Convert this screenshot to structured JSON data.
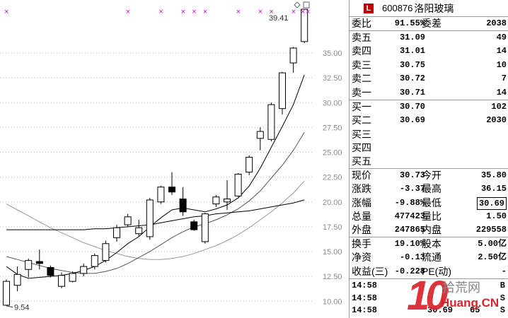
{
  "chart": {
    "high_label": "39.41",
    "low_label": "9.54",
    "axis_ticks": [
      "35.00",
      "32.50",
      "30.00",
      "27.50",
      "25.00",
      "22.50",
      "20.00",
      "17.50",
      "15.00",
      "12.50",
      "10.00"
    ],
    "axis_values": [
      35,
      32.5,
      30,
      27.5,
      25,
      22.5,
      20,
      17.5,
      15,
      12.5,
      10
    ],
    "marker_glyph": "×",
    "marker_count": 10,
    "candles": [
      {
        "o": 9.6,
        "c": 12.0,
        "h": 12.2,
        "l": 9.54
      },
      {
        "o": 11.6,
        "c": 12.7,
        "h": 13.5,
        "l": 11.0
      },
      {
        "o": 13.2,
        "c": 14.1,
        "h": 14.3,
        "l": 12.4
      },
      {
        "o": 14.0,
        "c": 13.8,
        "h": 15.2,
        "l": 13.2
      },
      {
        "o": 13.4,
        "c": 12.6,
        "h": 13.6,
        "l": 12.4
      },
      {
        "o": 11.5,
        "c": 12.6,
        "h": 12.9,
        "l": 11.3
      },
      {
        "o": 12.0,
        "c": 12.8,
        "h": 13.0,
        "l": 11.9
      },
      {
        "o": 12.8,
        "c": 13.5,
        "h": 13.8,
        "l": 12.5
      },
      {
        "o": 13.5,
        "c": 14.6,
        "h": 14.8,
        "l": 13.2
      },
      {
        "o": 14.1,
        "c": 15.8,
        "h": 16.1,
        "l": 13.9
      },
      {
        "o": 16.4,
        "c": 17.4,
        "h": 17.7,
        "l": 16.0
      },
      {
        "o": 17.7,
        "c": 18.5,
        "h": 18.8,
        "l": 17.5
      },
      {
        "o": 16.8,
        "c": 17.4,
        "h": 18.2,
        "l": 16.5
      },
      {
        "o": 16.5,
        "c": 20.2,
        "h": 20.4,
        "l": 16.2
      },
      {
        "o": 20.0,
        "c": 21.5,
        "h": 21.6,
        "l": 19.8
      },
      {
        "o": 21.5,
        "c": 21.0,
        "h": 23.0,
        "l": 20.7
      },
      {
        "o": 20.3,
        "c": 19.0,
        "h": 21.5,
        "l": 18.6
      },
      {
        "o": 18.0,
        "c": 17.2,
        "h": 18.2,
        "l": 17.1
      },
      {
        "o": 16.0,
        "c": 18.8,
        "h": 18.9,
        "l": 15.8
      },
      {
        "o": 19.8,
        "c": 20.5,
        "h": 20.7,
        "l": 19.5
      },
      {
        "o": 20.0,
        "c": 20.3,
        "h": 22.2,
        "l": 19.2
      },
      {
        "o": 20.6,
        "c": 22.8,
        "h": 22.9,
        "l": 20.5
      },
      {
        "o": 23.0,
        "c": 24.5,
        "h": 24.7,
        "l": 22.7
      },
      {
        "o": 26.4,
        "c": 27.1,
        "h": 27.5,
        "l": 25.2
      },
      {
        "o": 26.3,
        "c": 29.8,
        "h": 30.0,
        "l": 26.1
      },
      {
        "o": 29.4,
        "c": 33.0,
        "h": 33.1,
        "l": 28.8
      },
      {
        "o": 34.0,
        "c": 35.5,
        "h": 35.6,
        "l": 33.0
      },
      {
        "o": 36.15,
        "c": 39.41,
        "h": 39.41,
        "l": 36.0
      }
    ],
    "ma_fast": [
      13.5,
      12.7,
      12.3,
      12.4,
      12.5,
      12.6,
      12.8,
      13.1,
      13.5,
      14.1,
      14.9,
      15.8,
      16.5,
      17.5,
      18.4,
      19.2,
      19.4,
      19.2,
      19.0,
      19.3,
      19.7,
      20.4,
      21.6,
      23.4,
      25.5,
      27.6,
      29.8,
      32.8
    ],
    "ma_mid": [
      14.5,
      14.2,
      13.9,
      13.6,
      13.3,
      13.1,
      12.9,
      12.8,
      12.8,
      13.0,
      13.3,
      13.8,
      14.4,
      15.0,
      15.7,
      16.4,
      17.0,
      17.5,
      17.8,
      18.2,
      18.7,
      19.3,
      20.1,
      21.1,
      22.4,
      23.7,
      25.2,
      27.0
    ],
    "ma_slow": [
      19.8,
      19.2,
      18.6,
      18.0,
      17.4,
      16.9,
      16.4,
      15.9,
      15.5,
      15.1,
      14.8,
      14.5,
      14.3,
      14.2,
      14.2,
      14.3,
      14.5,
      14.8,
      15.2,
      15.6,
      16.1,
      16.7,
      17.4,
      18.2,
      19.0,
      19.9,
      20.9,
      22.1
    ],
    "ma_long": [
      17.2,
      17.2,
      17.2,
      17.2,
      17.2,
      17.2,
      17.2,
      17.2,
      17.3,
      17.3,
      17.4,
      17.5,
      17.6,
      17.7,
      17.9,
      18.1,
      18.3,
      18.5,
      18.6,
      18.8,
      18.9,
      19.0,
      19.1,
      19.3,
      19.5,
      19.7,
      19.9,
      20.2
    ]
  },
  "header": {
    "badge": "L",
    "code": "600876",
    "name": "洛阳玻璃"
  },
  "ratio": {
    "label": "委比",
    "value": "91.55%",
    "label2": "委差",
    "value2": "2038"
  },
  "asks": [
    {
      "label": "卖五",
      "price": "31.09",
      "vol": "49"
    },
    {
      "label": "卖四",
      "price": "31.01",
      "vol": "14"
    },
    {
      "label": "卖三",
      "price": "30.75",
      "vol": "10"
    },
    {
      "label": "卖二",
      "price": "30.72",
      "vol": "7"
    },
    {
      "label": "卖一",
      "price": "30.71",
      "vol": "14"
    }
  ],
  "bids": [
    {
      "label": "买一",
      "price": "30.70",
      "vol": "102"
    },
    {
      "label": "买二",
      "price": "30.69",
      "vol": "2030"
    },
    {
      "label": "买三",
      "price": "",
      "vol": ""
    },
    {
      "label": "买四",
      "price": "",
      "vol": ""
    },
    {
      "label": "买五",
      "price": "",
      "vol": ""
    }
  ],
  "stats": [
    {
      "l1": "现价",
      "v1": "30.73",
      "l2": "今开",
      "v2": "35.80"
    },
    {
      "l1": "涨跌",
      "v1": "-3.37",
      "l2": "最高",
      "v2": "36.15"
    },
    {
      "l1": "涨幅",
      "v1": "-9.88%",
      "l2": "最低",
      "v2": "30.69"
    },
    {
      "l1": "总量",
      "v1": "477423",
      "l2": "量比",
      "v2": "1.50"
    },
    {
      "l1": "外盘",
      "v1": "247865",
      "l2": "内盘",
      "v2": "229558"
    }
  ],
  "stats2": [
    {
      "l1": "换手",
      "v1": "19.10%",
      "l2": "股本",
      "v2": "5.00亿"
    },
    {
      "l1": "净资",
      "v1": "-0.13",
      "l2": "流通",
      "v2": "2.50亿"
    },
    {
      "l1": "收益(三)",
      "v1": "-0.228",
      "l2": "PE(动)",
      "v2": "-"
    }
  ],
  "ticks": [
    {
      "time": "14:58",
      "price": "",
      "vol": "",
      "dir": "B"
    },
    {
      "time": "14:58",
      "price": "",
      "vol": "",
      "dir": "S"
    },
    {
      "time": "14:58",
      "price": "30.69",
      "vol": "65",
      "dir": "S"
    }
  ],
  "watermark": {
    "big": "10",
    "top": "拾荒网",
    "bottom": "Huang.CN"
  },
  "colors": {
    "up": "#000000",
    "down": "#000000",
    "ma_fast": "#000000",
    "ma_mid": "#555555",
    "ma_slow": "#999999",
    "marker": "#cc00cc",
    "grid": "#b0b0b0"
  }
}
